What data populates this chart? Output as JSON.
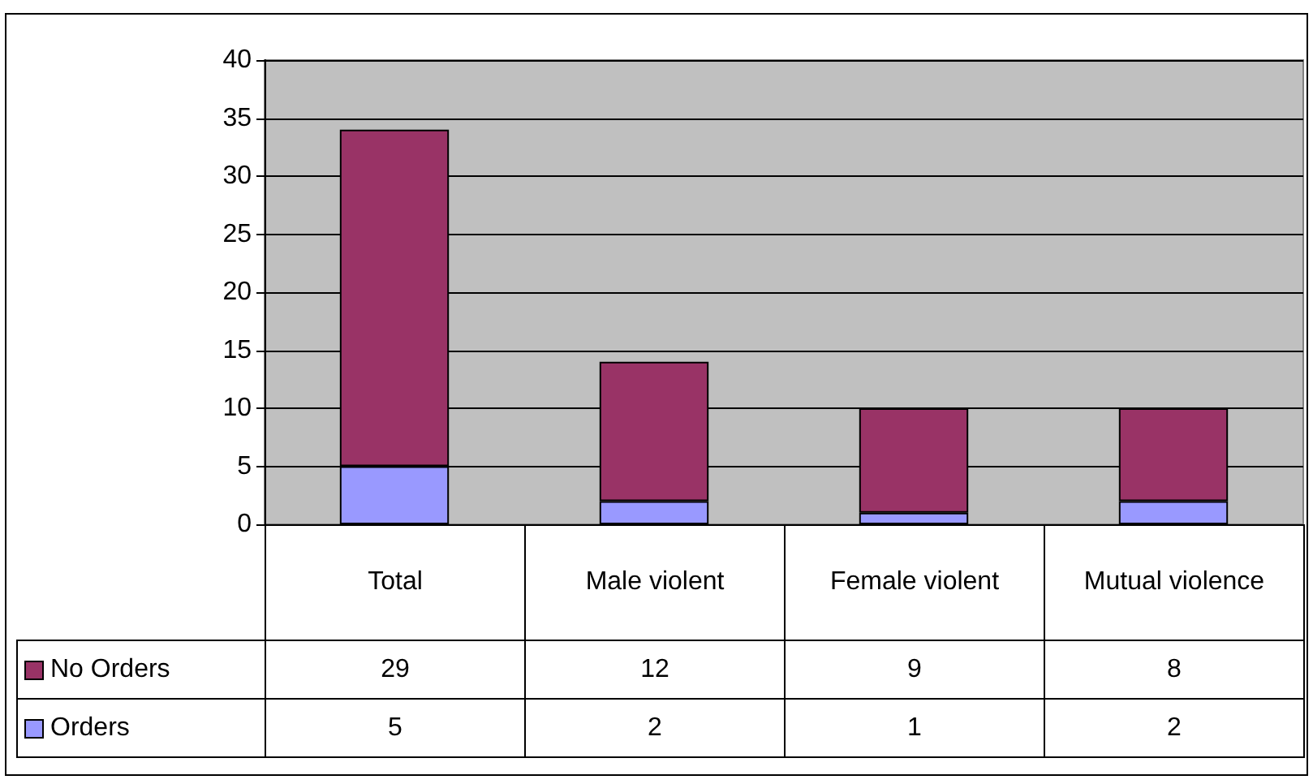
{
  "chart_data": {
    "type": "bar",
    "stacked": true,
    "categories": [
      "Total",
      "Male violent",
      "Female violent",
      "Mutual violence"
    ],
    "series": [
      {
        "name": "Orders",
        "color": "#9999ff",
        "values": [
          5,
          2,
          1,
          2
        ]
      },
      {
        "name": "No Orders",
        "color": "#993366",
        "values": [
          29,
          12,
          9,
          8
        ]
      }
    ],
    "ylim": [
      0,
      40
    ],
    "yticks": [
      0,
      5,
      10,
      15,
      20,
      25,
      30,
      35,
      40
    ],
    "grid": "y",
    "legend": "bottom left",
    "data_labels": true
  }
}
